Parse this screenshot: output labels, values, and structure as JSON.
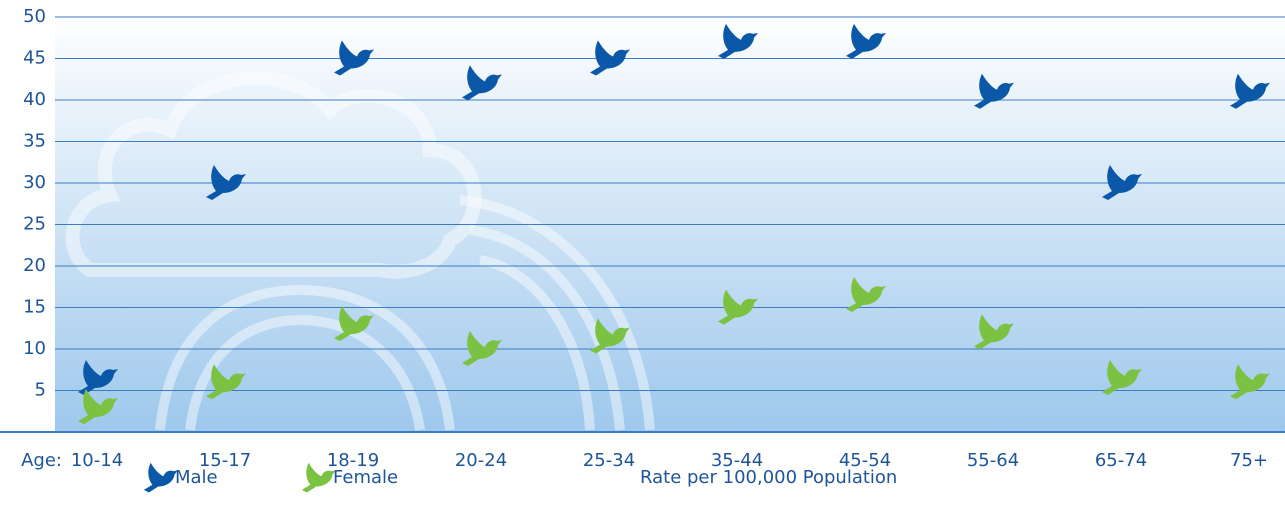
{
  "chart_data": {
    "type": "scatter",
    "y_label": "Rate per 100,000 Population",
    "x_label": "Age:",
    "categories": [
      "10-14",
      "15-17",
      "18-19",
      "20-24",
      "25-34",
      "35-44",
      "45-54",
      "55-64",
      "65-74",
      "75+"
    ],
    "series": [
      {
        "name": "Male",
        "color": "#0b58a8",
        "values": [
          6.5,
          30,
          45,
          42,
          45,
          47,
          47,
          41,
          30,
          41
        ]
      },
      {
        "name": "Female",
        "color": "#7cc242",
        "values": [
          3,
          6,
          13,
          10,
          11.5,
          15,
          16.5,
          12,
          6.5,
          6
        ]
      }
    ],
    "ylim": [
      0,
      50
    ],
    "yticks": [
      5,
      10,
      15,
      20,
      25,
      30,
      35,
      40,
      45,
      50
    ],
    "grid": true
  }
}
